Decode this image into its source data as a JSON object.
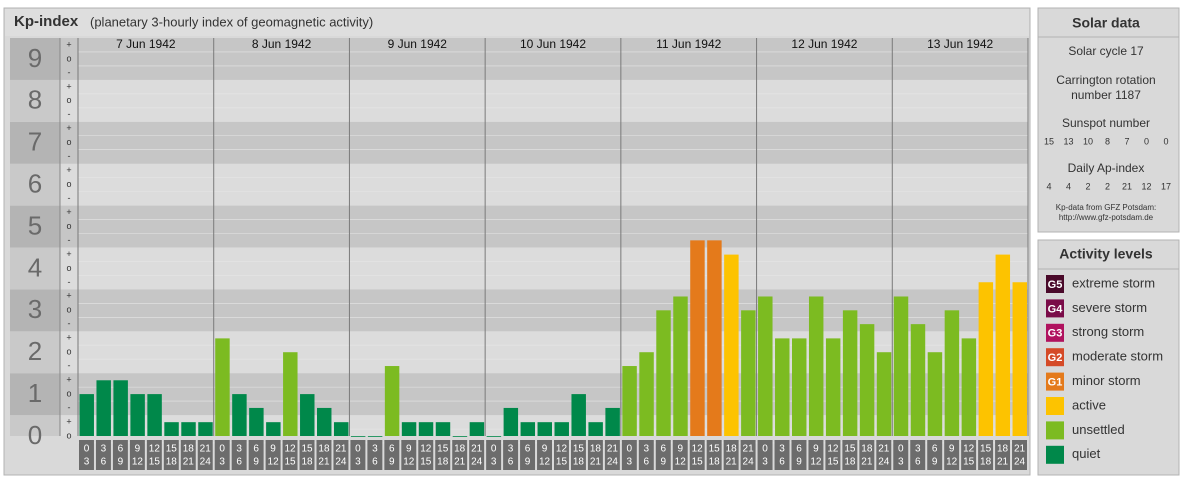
{
  "chart_data": {
    "type": "bar",
    "title": "Kp-index",
    "subtitle": "(planetary 3-hourly index of geomagnetic activity)",
    "ylim": [
      0,
      9.5
    ],
    "yticks": [
      0,
      1,
      2,
      3,
      4,
      5,
      6,
      7,
      8,
      9
    ],
    "subtick_labels": {
      "minus": "-",
      "zero": "o",
      "plus": "+"
    },
    "hour_labels": [
      [
        "0",
        "3"
      ],
      [
        "3",
        "6"
      ],
      [
        "6",
        "9"
      ],
      [
        "9",
        "12"
      ],
      [
        "12",
        "15"
      ],
      [
        "15",
        "18"
      ],
      [
        "18",
        "21"
      ],
      [
        "21",
        "24"
      ]
    ],
    "days": [
      {
        "date": "7 Jun 1942",
        "values": [
          1,
          1.33,
          1.33,
          1,
          1,
          0.33,
          0.33,
          0.33
        ],
        "colors": [
          "#00884a",
          "#00884a",
          "#00884a",
          "#00884a",
          "#00884a",
          "#00884a",
          "#00884a",
          "#00884a"
        ]
      },
      {
        "date": "8 Jun 1942",
        "values": [
          2.33,
          1,
          0.67,
          0.33,
          2,
          1,
          0.67,
          0.33
        ],
        "colors": [
          "#7cbb21",
          "#00884a",
          "#00884a",
          "#00884a",
          "#7cbb21",
          "#00884a",
          "#00884a",
          "#00884a"
        ]
      },
      {
        "date": "9 Jun 1942",
        "values": [
          0,
          0,
          1.67,
          0.33,
          0.33,
          0.33,
          0,
          0.33
        ],
        "colors": [
          "#00884a",
          "#00884a",
          "#7cbb21",
          "#00884a",
          "#00884a",
          "#00884a",
          "#00884a",
          "#00884a"
        ]
      },
      {
        "date": "10 Jun 1942",
        "values": [
          0,
          0.67,
          0.33,
          0.33,
          0.33,
          1,
          0.33,
          0.67
        ],
        "colors": [
          "#00884a",
          "#00884a",
          "#00884a",
          "#00884a",
          "#00884a",
          "#00884a",
          "#00884a",
          "#00884a"
        ]
      },
      {
        "date": "11 Jun 1942",
        "values": [
          1.67,
          2,
          3,
          3.33,
          4.67,
          4.67,
          4.33,
          3
        ],
        "colors": [
          "#7cbb21",
          "#7cbb21",
          "#7cbb21",
          "#7cbb21",
          "#e47a1b",
          "#e47a1b",
          "#fdc300",
          "#7cbb21"
        ]
      },
      {
        "date": "12 Jun 1942",
        "values": [
          3.33,
          2.33,
          2.33,
          3.33,
          2.33,
          3,
          2.67,
          2
        ],
        "colors": [
          "#7cbb21",
          "#7cbb21",
          "#7cbb21",
          "#7cbb21",
          "#7cbb21",
          "#7cbb21",
          "#7cbb21",
          "#7cbb21"
        ]
      },
      {
        "date": "13 Jun 1942",
        "values": [
          3.33,
          2.67,
          2,
          3,
          2.33,
          3.67,
          4.33,
          3.67
        ],
        "colors": [
          "#7cbb21",
          "#7cbb21",
          "#7cbb21",
          "#7cbb21",
          "#7cbb21",
          "#fdc300",
          "#fdc300",
          "#fdc300"
        ]
      }
    ]
  },
  "solar_data": {
    "title": "Solar data",
    "cycle": "Solar cycle 17",
    "carrington": [
      "Carrington rotation",
      "number 1187"
    ],
    "sunspot_title": "Sunspot number",
    "sunspots": [
      15,
      13,
      10,
      8,
      7,
      0,
      0
    ],
    "ap_title": "Daily Ap-index",
    "ap": [
      4,
      4,
      2,
      2,
      21,
      12,
      17
    ],
    "source": [
      "Kp-data from GFZ Potsdam:",
      "http://www.gfz-potsdam.de"
    ]
  },
  "activity_levels": {
    "title": "Activity levels",
    "levels": [
      {
        "badge": "G5",
        "name": "extreme storm",
        "color": "#4a0a2a"
      },
      {
        "badge": "G4",
        "name": "severe storm",
        "color": "#7a0b48"
      },
      {
        "badge": "G3",
        "name": "strong storm",
        "color": "#b0125e"
      },
      {
        "badge": "G2",
        "name": "moderate storm",
        "color": "#d54a27"
      },
      {
        "badge": "G1",
        "name": "minor storm",
        "color": "#e47a1b"
      },
      {
        "badge": "",
        "name": "active",
        "color": "#fdc300"
      },
      {
        "badge": "",
        "name": "unsettled",
        "color": "#7cbb21"
      },
      {
        "badge": "",
        "name": "quiet",
        "color": "#00884a"
      }
    ]
  }
}
